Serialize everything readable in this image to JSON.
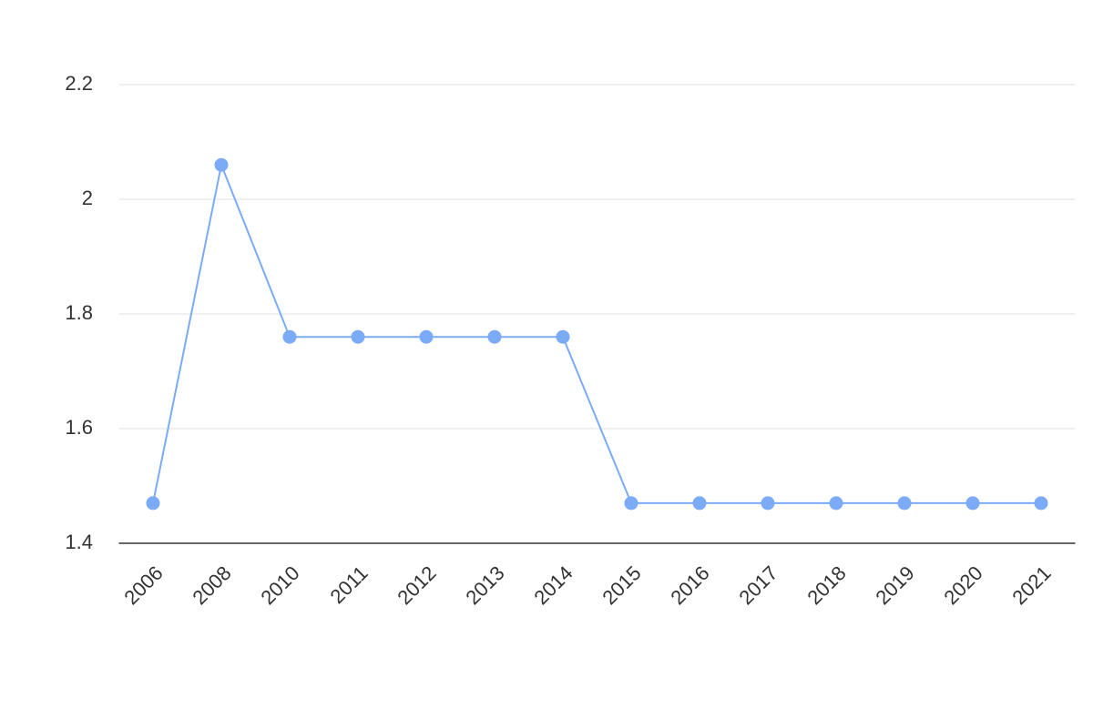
{
  "chart_data": {
    "type": "line",
    "categories": [
      "2006",
      "2008",
      "2010",
      "2011",
      "2012",
      "2013",
      "2014",
      "2015",
      "2016",
      "2017",
      "2018",
      "2019",
      "2020",
      "2021"
    ],
    "values": [
      1.47,
      2.06,
      1.76,
      1.76,
      1.76,
      1.76,
      1.76,
      1.47,
      1.47,
      1.47,
      1.47,
      1.47,
      1.47,
      1.47
    ],
    "color": "#7baaf7",
    "ylim": [
      1.4,
      2.2
    ],
    "yticks": [
      1.4,
      1.6,
      1.8,
      2,
      2.2
    ],
    "grid": true
  }
}
